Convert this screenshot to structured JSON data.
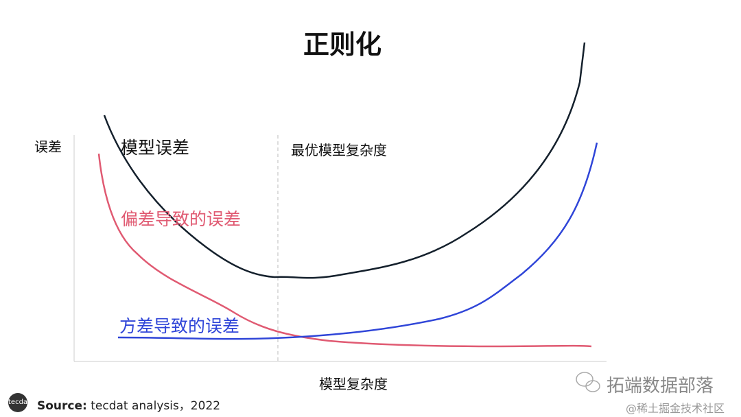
{
  "title": "正则化",
  "y_label": "误差",
  "x_label": "模型复杂度",
  "curve_labels": {
    "total": "模型误差",
    "optimum": "最优模型复杂度",
    "bias": "偏差导致的误差",
    "variance": "方差导致的误差"
  },
  "footer": {
    "logo": "tecdat",
    "source_label": "Source:",
    "source_text": " tecdat analysis，2022"
  },
  "watermark": {
    "brand": "拓端数据部落",
    "community": "@稀土掘金技术社区"
  }
}
